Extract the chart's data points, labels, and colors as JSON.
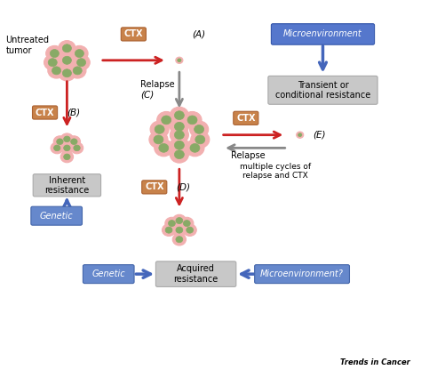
{
  "fig_width": 4.74,
  "fig_height": 4.25,
  "dpi": 100,
  "bg_color": "#ffffff",
  "title": "Trends in Cancer",
  "ctx_box_color": "#c8824a",
  "ctx_text_color": "#ffffff",
  "genetic_box_color": "#6688cc",
  "micro_box_color": "#5577cc",
  "gray_box_color": "#c8c8c8",
  "cell_fill": "#f2b0b0",
  "cell_border": "#ffffff",
  "nucleus_fill": "#88aa66",
  "nucleus_border": "#557744",
  "arrow_red": "#cc2222",
  "arrow_blue": "#4466bb",
  "arrow_gray": "#888888",
  "label_A": "(A)",
  "label_B": "(B)",
  "label_C": "(C)",
  "label_D": "(D)",
  "label_E": "(E)",
  "text_untreated": "Untreated\ntumor",
  "text_relapse": "Relapse",
  "text_transient": "Transient or\nconditional resistance",
  "text_inherent": "Inherent\nresistance",
  "text_acquired": "Acquired\nresistance",
  "text_genetic_bottom": "Genetic",
  "text_micro_bottom": "Microenvironment?",
  "text_micro_top": "Microenvironment",
  "text_genetic_left": "Genetic",
  "text_multiple": "multiple cycles of\nrelapse and CTX",
  "text_ctx": "CTX"
}
